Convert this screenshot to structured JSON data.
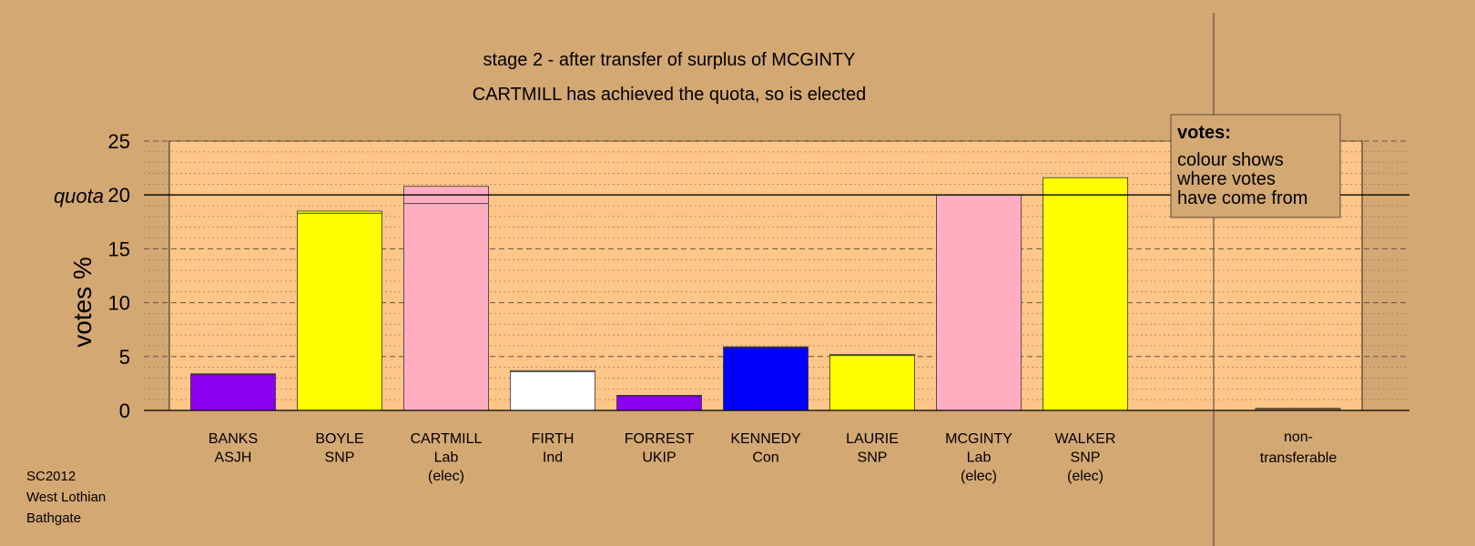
{
  "chart_data": {
    "type": "bar",
    "title": "stage 2 - after transfer of surplus of MCGINTY",
    "subtitle": "CARTMILL has achieved the quota, so is elected",
    "ylabel": "votes %",
    "quota_label": "quota",
    "quota": 20,
    "ylim": [
      0,
      25
    ],
    "yticks": [
      "0",
      "5",
      "10",
      "15",
      "20",
      "25"
    ],
    "grid": true,
    "legend": {
      "title": "votes:",
      "lines": [
        "colour shows",
        "where votes",
        "have come from"
      ],
      "placement": "top-right"
    },
    "colors": {
      "background": "#d4a873",
      "plot": "#fec689",
      "ASJH": "#8b00ee",
      "SNP": "#ffff00",
      "Lab": "#ffadc0",
      "Ind": "#ffffff",
      "UKIP": "#8b00ee",
      "Con": "#0000ff",
      "nontransferable": "#8b6a3a"
    },
    "candidates": [
      {
        "name": "BANKS",
        "party": "ASJH",
        "note": "",
        "value": 3.4,
        "transfer": 0.1
      },
      {
        "name": "BOYLE",
        "party": "SNP",
        "note": "",
        "value": 18.5,
        "transfer": 0.2
      },
      {
        "name": "CARTMILL",
        "party": "Lab",
        "note": "(elec)",
        "value": 20.8,
        "transfer": 1.6
      },
      {
        "name": "FIRTH",
        "party": "Ind",
        "note": "",
        "value": 3.7,
        "transfer": 0.1
      },
      {
        "name": "FORREST",
        "party": "UKIP",
        "note": "",
        "value": 1.4,
        "transfer": 0.05
      },
      {
        "name": "KENNEDY",
        "party": "Con",
        "note": "",
        "value": 5.9,
        "transfer": 0.1
      },
      {
        "name": "LAURIE",
        "party": "SNP",
        "note": "",
        "value": 5.2,
        "transfer": 0.1
      },
      {
        "name": "MCGINTY",
        "party": "Lab",
        "note": "(elec)",
        "value": 20.0,
        "transfer": 0
      },
      {
        "name": "WALKER",
        "party": "SNP",
        "note": "(elec)",
        "value": 21.6,
        "transfer": 0
      }
    ],
    "nontransferable": {
      "label_lines": [
        "non-",
        "transferable"
      ],
      "value": 0.2
    }
  },
  "footer": {
    "lines": [
      "SC2012",
      "West Lothian",
      "Bathgate"
    ]
  }
}
